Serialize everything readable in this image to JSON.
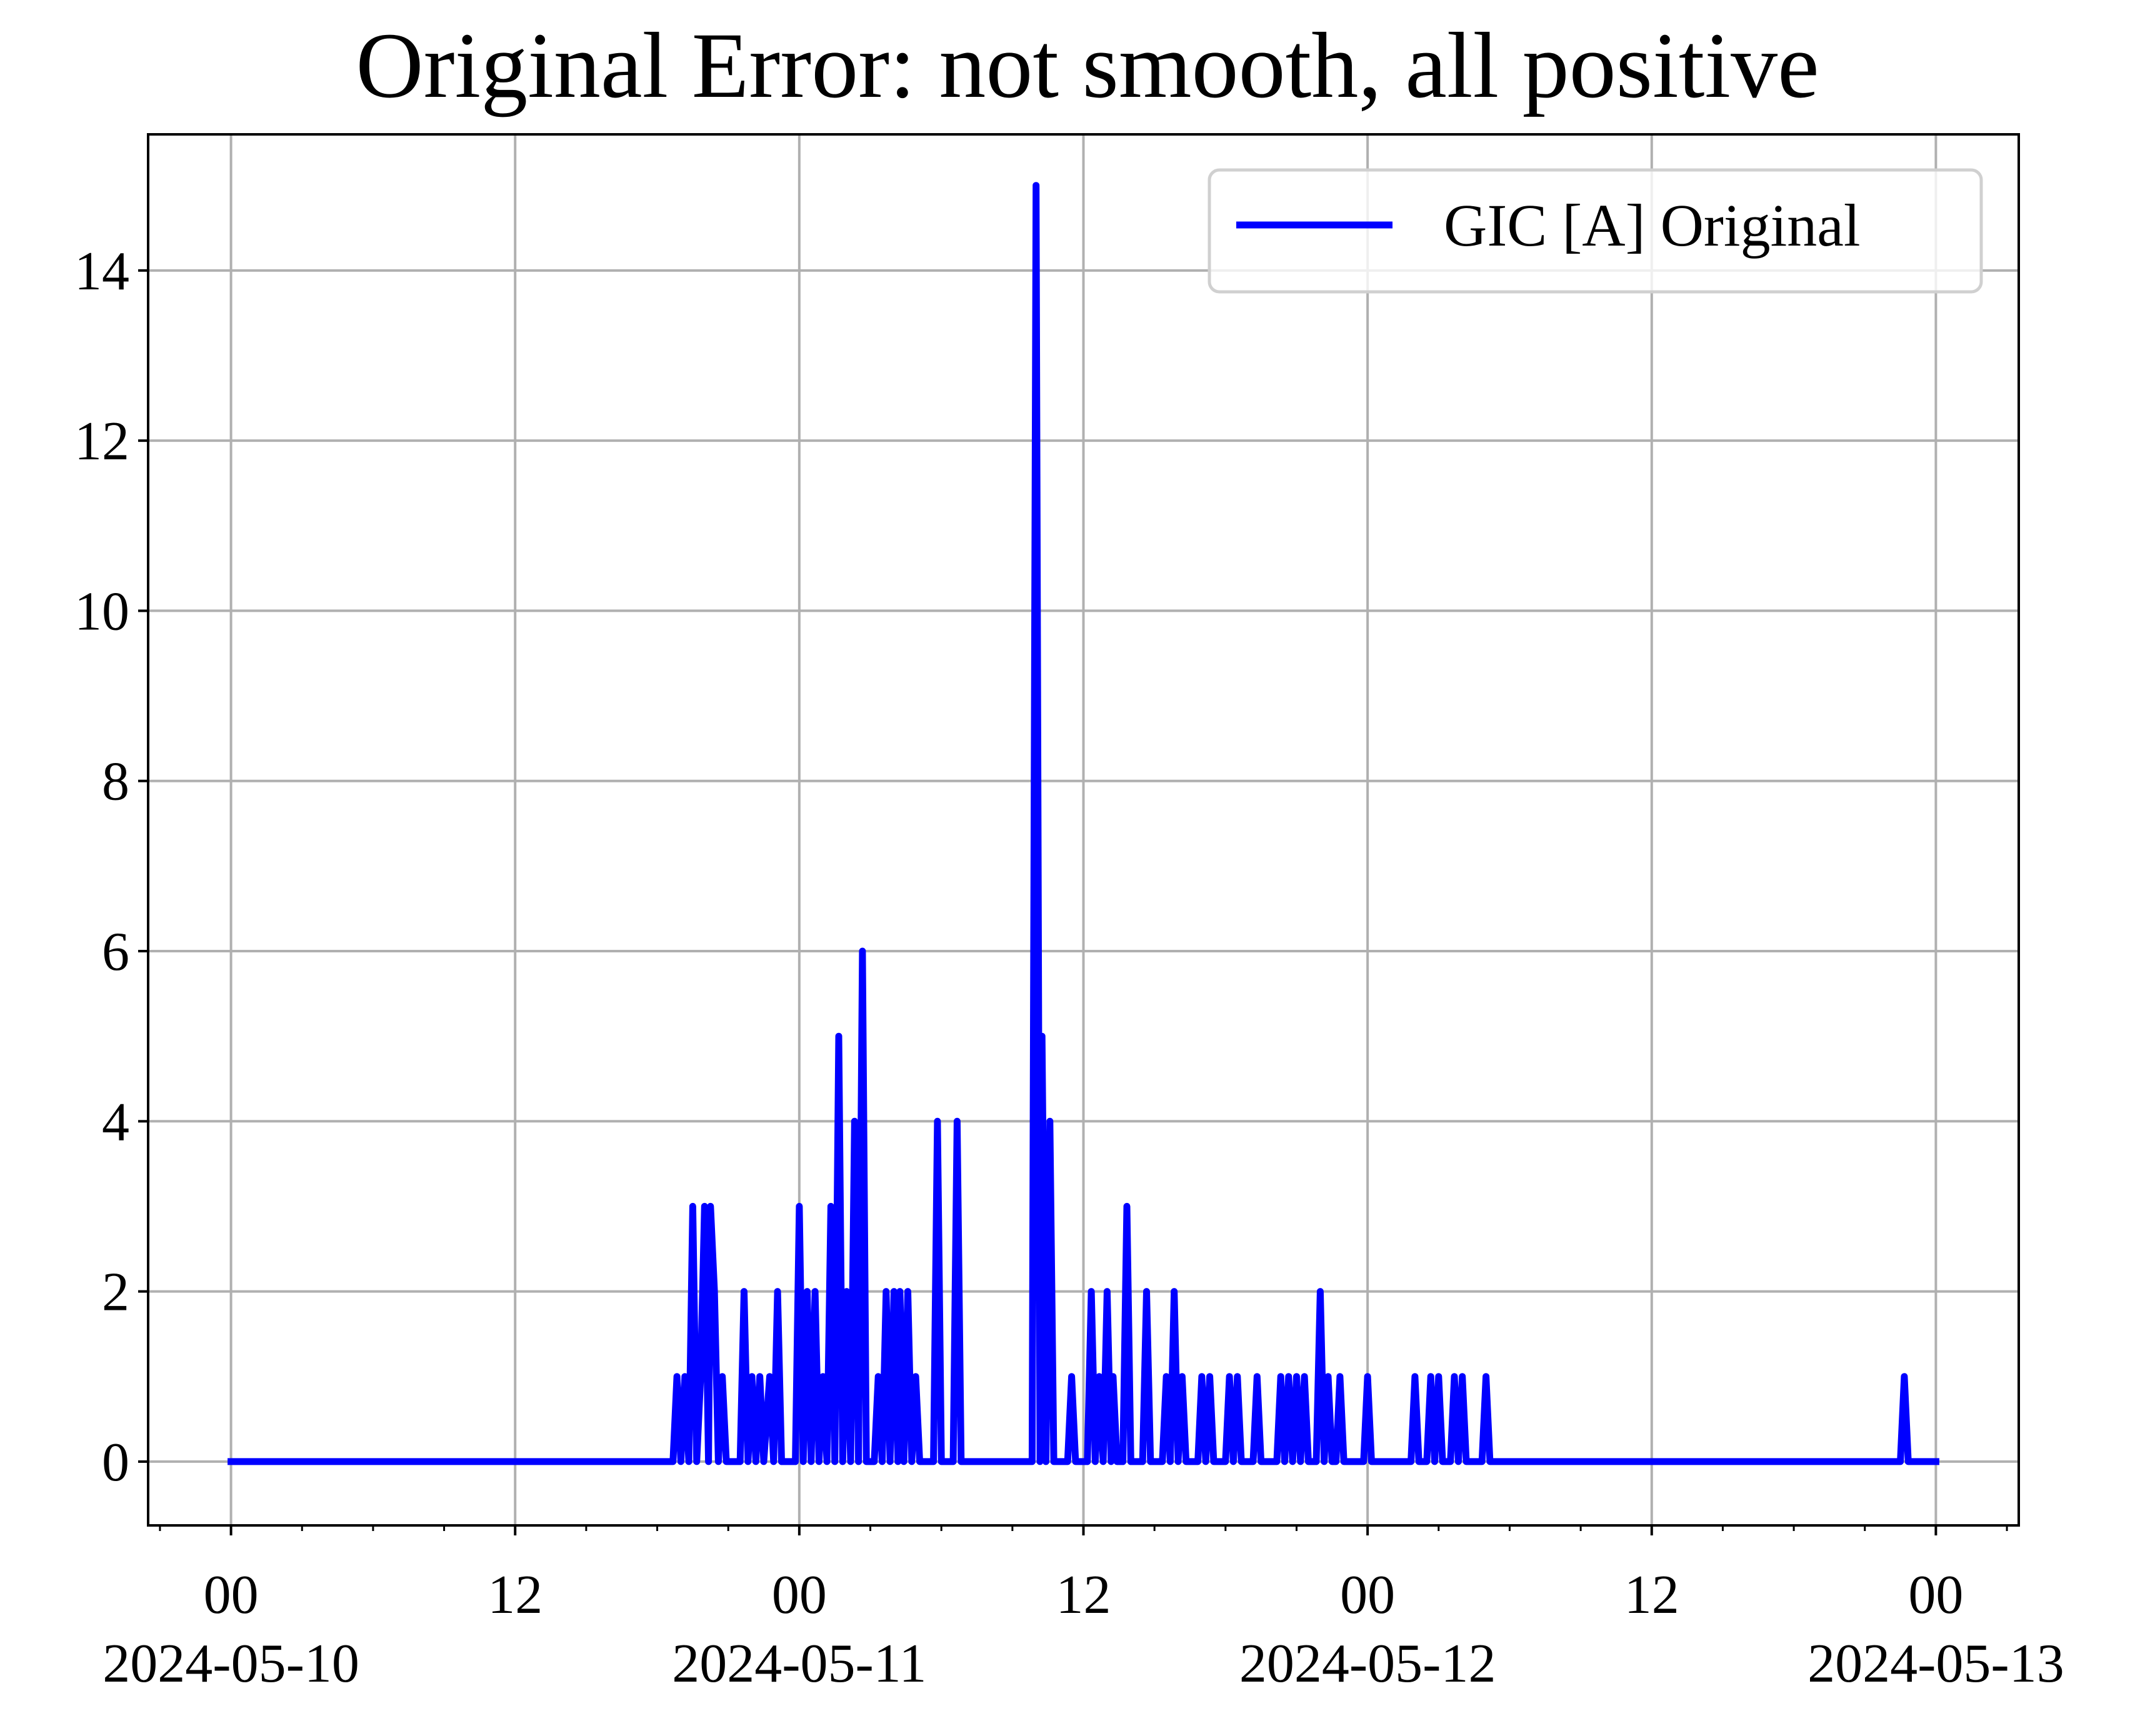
{
  "chart_data": {
    "type": "line",
    "title": "Original Error: not smooth, all positive",
    "xlabel": "",
    "ylabel": "",
    "xlim": [
      "2024-05-09 20:30",
      "2024-05-13 03:30"
    ],
    "ylim": [
      -0.75,
      15.6
    ],
    "grid": true,
    "legend_position": "top-right",
    "x_ticks": [
      {
        "at": "2024-05-10 00:00",
        "label": "00",
        "date_label": "2024-05-10"
      },
      {
        "at": "2024-05-10 12:00",
        "label": "12",
        "date_label": ""
      },
      {
        "at": "2024-05-11 00:00",
        "label": "00",
        "date_label": "2024-05-11"
      },
      {
        "at": "2024-05-11 12:00",
        "label": "12",
        "date_label": ""
      },
      {
        "at": "2024-05-12 00:00",
        "label": "00",
        "date_label": "2024-05-12"
      },
      {
        "at": "2024-05-12 12:00",
        "label": "12",
        "date_label": ""
      },
      {
        "at": "2024-05-13 00:00",
        "label": "00",
        "date_label": "2024-05-13"
      }
    ],
    "y_ticks": [
      0,
      2,
      4,
      6,
      8,
      10,
      12,
      14
    ],
    "series": [
      {
        "name": "GIC [A] Original",
        "color": "#0000ff",
        "points": [
          [
            "2024-05-10 00:00",
            0
          ],
          [
            "2024-05-10 18:40",
            0
          ],
          [
            "2024-05-10 18:50",
            1
          ],
          [
            "2024-05-10 19:00",
            0
          ],
          [
            "2024-05-10 19:10",
            1
          ],
          [
            "2024-05-10 19:20",
            0
          ],
          [
            "2024-05-10 19:30",
            3
          ],
          [
            "2024-05-10 19:40",
            0
          ],
          [
            "2024-05-10 19:50",
            1
          ],
          [
            "2024-05-10 20:00",
            3
          ],
          [
            "2024-05-10 20:10",
            0
          ],
          [
            "2024-05-10 20:15",
            3
          ],
          [
            "2024-05-10 20:25",
            2
          ],
          [
            "2024-05-10 20:35",
            0
          ],
          [
            "2024-05-10 20:45",
            1
          ],
          [
            "2024-05-10 20:55",
            0
          ],
          [
            "2024-05-10 21:30",
            0
          ],
          [
            "2024-05-10 21:40",
            2
          ],
          [
            "2024-05-10 21:50",
            0
          ],
          [
            "2024-05-10 22:00",
            1
          ],
          [
            "2024-05-10 22:10",
            0
          ],
          [
            "2024-05-10 22:20",
            1
          ],
          [
            "2024-05-10 22:30",
            0
          ],
          [
            "2024-05-10 22:45",
            1
          ],
          [
            "2024-05-10 22:55",
            0
          ],
          [
            "2024-05-10 23:05",
            2
          ],
          [
            "2024-05-10 23:15",
            0
          ],
          [
            "2024-05-10 23:50",
            0
          ],
          [
            "2024-05-11 00:00",
            3
          ],
          [
            "2024-05-11 00:10",
            0
          ],
          [
            "2024-05-11 00:20",
            2
          ],
          [
            "2024-05-11 00:30",
            0
          ],
          [
            "2024-05-11 00:40",
            2
          ],
          [
            "2024-05-11 00:50",
            0
          ],
          [
            "2024-05-11 01:00",
            1
          ],
          [
            "2024-05-11 01:10",
            0
          ],
          [
            "2024-05-11 01:20",
            3
          ],
          [
            "2024-05-11 01:30",
            0
          ],
          [
            "2024-05-11 01:40",
            5
          ],
          [
            "2024-05-11 01:50",
            0
          ],
          [
            "2024-05-11 02:00",
            2
          ],
          [
            "2024-05-11 02:10",
            0
          ],
          [
            "2024-05-11 02:20",
            4
          ],
          [
            "2024-05-11 02:30",
            0
          ],
          [
            "2024-05-11 02:40",
            6
          ],
          [
            "2024-05-11 02:50",
            0
          ],
          [
            "2024-05-11 03:10",
            0
          ],
          [
            "2024-05-11 03:20",
            1
          ],
          [
            "2024-05-11 03:30",
            0
          ],
          [
            "2024-05-11 03:40",
            2
          ],
          [
            "2024-05-11 03:50",
            0
          ],
          [
            "2024-05-11 04:00",
            2
          ],
          [
            "2024-05-11 04:10",
            0
          ],
          [
            "2024-05-11 04:15",
            2
          ],
          [
            "2024-05-11 04:25",
            0
          ],
          [
            "2024-05-11 04:35",
            2
          ],
          [
            "2024-05-11 04:45",
            0
          ],
          [
            "2024-05-11 04:55",
            1
          ],
          [
            "2024-05-11 05:05",
            0
          ],
          [
            "2024-05-11 05:40",
            0
          ],
          [
            "2024-05-11 05:50",
            4
          ],
          [
            "2024-05-11 06:00",
            0
          ],
          [
            "2024-05-11 06:30",
            0
          ],
          [
            "2024-05-11 06:40",
            4
          ],
          [
            "2024-05-11 06:50",
            0
          ],
          [
            "2024-05-11 09:50",
            0
          ],
          [
            "2024-05-11 10:00",
            15
          ],
          [
            "2024-05-11 10:10",
            0
          ],
          [
            "2024-05-11 10:15",
            5
          ],
          [
            "2024-05-11 10:25",
            0
          ],
          [
            "2024-05-11 10:35",
            4
          ],
          [
            "2024-05-11 10:45",
            0
          ],
          [
            "2024-05-11 11:20",
            0
          ],
          [
            "2024-05-11 11:30",
            1
          ],
          [
            "2024-05-11 11:40",
            0
          ],
          [
            "2024-05-11 12:10",
            0
          ],
          [
            "2024-05-11 12:20",
            2
          ],
          [
            "2024-05-11 12:30",
            0
          ],
          [
            "2024-05-11 12:40",
            1
          ],
          [
            "2024-05-11 12:50",
            0
          ],
          [
            "2024-05-11 13:00",
            2
          ],
          [
            "2024-05-11 13:10",
            0
          ],
          [
            "2024-05-11 13:15",
            1
          ],
          [
            "2024-05-11 13:25",
            0
          ],
          [
            "2024-05-11 13:40",
            0
          ],
          [
            "2024-05-11 13:50",
            3
          ],
          [
            "2024-05-11 14:00",
            0
          ],
          [
            "2024-05-11 14:30",
            0
          ],
          [
            "2024-05-11 14:40",
            2
          ],
          [
            "2024-05-11 14:50",
            0
          ],
          [
            "2024-05-11 15:20",
            0
          ],
          [
            "2024-05-11 15:30",
            1
          ],
          [
            "2024-05-11 15:40",
            0
          ],
          [
            "2024-05-11 15:50",
            2
          ],
          [
            "2024-05-11 16:00",
            0
          ],
          [
            "2024-05-11 16:10",
            1
          ],
          [
            "2024-05-11 16:20",
            0
          ],
          [
            "2024-05-11 16:50",
            0
          ],
          [
            "2024-05-11 17:00",
            1
          ],
          [
            "2024-05-11 17:10",
            0
          ],
          [
            "2024-05-11 17:20",
            1
          ],
          [
            "2024-05-11 17:30",
            0
          ],
          [
            "2024-05-11 18:00",
            0
          ],
          [
            "2024-05-11 18:10",
            1
          ],
          [
            "2024-05-11 18:20",
            0
          ],
          [
            "2024-05-11 18:30",
            1
          ],
          [
            "2024-05-11 18:40",
            0
          ],
          [
            "2024-05-11 19:10",
            0
          ],
          [
            "2024-05-11 19:20",
            1
          ],
          [
            "2024-05-11 19:30",
            0
          ],
          [
            "2024-05-11 20:10",
            0
          ],
          [
            "2024-05-11 20:20",
            1
          ],
          [
            "2024-05-11 20:30",
            0
          ],
          [
            "2024-05-11 20:40",
            1
          ],
          [
            "2024-05-11 20:50",
            0
          ],
          [
            "2024-05-11 21:00",
            1
          ],
          [
            "2024-05-11 21:10",
            0
          ],
          [
            "2024-05-11 21:20",
            1
          ],
          [
            "2024-05-11 21:30",
            0
          ],
          [
            "2024-05-11 21:50",
            0
          ],
          [
            "2024-05-11 22:00",
            2
          ],
          [
            "2024-05-11 22:10",
            0
          ],
          [
            "2024-05-11 22:20",
            1
          ],
          [
            "2024-05-11 22:30",
            0
          ],
          [
            "2024-05-11 22:40",
            0
          ],
          [
            "2024-05-11 22:50",
            1
          ],
          [
            "2024-05-11 23:00",
            0
          ],
          [
            "2024-05-11 23:50",
            0
          ],
          [
            "2024-05-12 00:00",
            1
          ],
          [
            "2024-05-12 00:10",
            0
          ],
          [
            "2024-05-12 01:50",
            0
          ],
          [
            "2024-05-12 02:00",
            1
          ],
          [
            "2024-05-12 02:10",
            0
          ],
          [
            "2024-05-12 02:30",
            0
          ],
          [
            "2024-05-12 02:40",
            1
          ],
          [
            "2024-05-12 02:50",
            0
          ],
          [
            "2024-05-12 03:00",
            1
          ],
          [
            "2024-05-12 03:10",
            0
          ],
          [
            "2024-05-12 03:30",
            0
          ],
          [
            "2024-05-12 03:40",
            1
          ],
          [
            "2024-05-12 03:50",
            0
          ],
          [
            "2024-05-12 04:00",
            1
          ],
          [
            "2024-05-12 04:10",
            0
          ],
          [
            "2024-05-12 04:50",
            0
          ],
          [
            "2024-05-12 05:00",
            1
          ],
          [
            "2024-05-12 05:10",
            0
          ],
          [
            "2024-05-12 22:30",
            0
          ],
          [
            "2024-05-12 22:40",
            1
          ],
          [
            "2024-05-12 22:50",
            0
          ],
          [
            "2024-05-13 00:00",
            0
          ]
        ]
      }
    ]
  }
}
